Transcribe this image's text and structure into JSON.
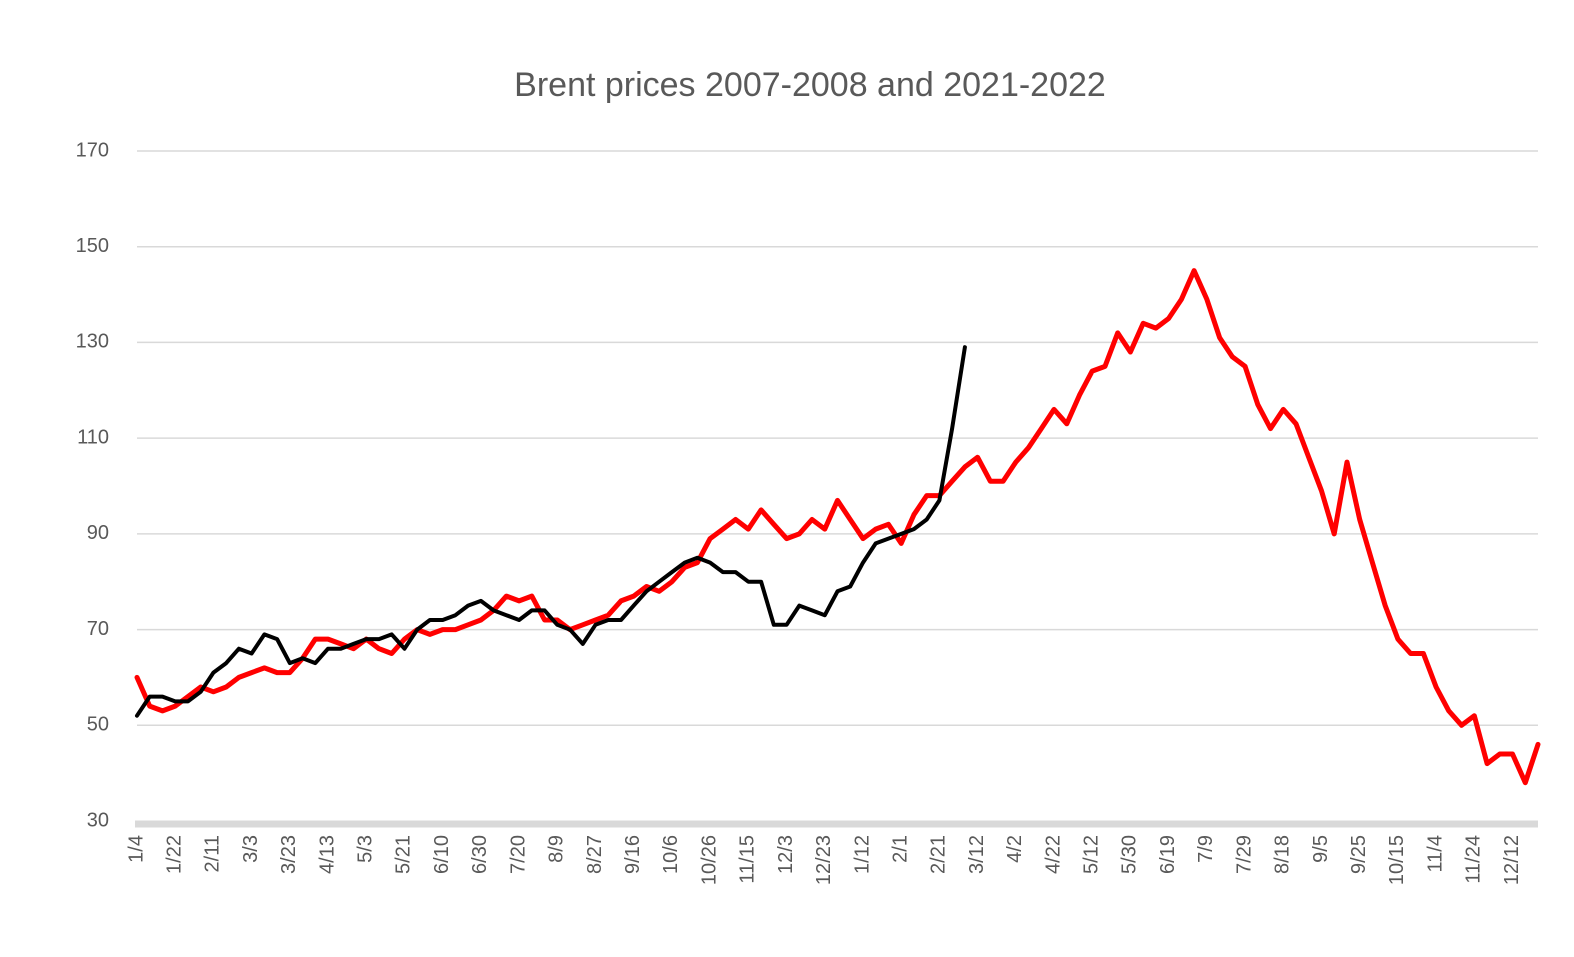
{
  "chart_data": {
    "type": "line",
    "title": "Brent prices 2007-2008 and 2021-2022",
    "categories": [
      "1/4",
      null,
      null,
      "1/22",
      null,
      null,
      "2/11",
      null,
      null,
      "3/3",
      null,
      null,
      "3/23",
      null,
      null,
      "4/13",
      null,
      null,
      "5/3",
      null,
      null,
      "5/21",
      null,
      null,
      "6/10",
      null,
      null,
      "6/30",
      null,
      null,
      "7/20",
      null,
      null,
      "8/9",
      null,
      null,
      "8/27",
      null,
      null,
      "9/16",
      null,
      null,
      "10/6",
      null,
      null,
      "10/26",
      null,
      null,
      "11/15",
      null,
      null,
      "12/3",
      null,
      null,
      "12/23",
      null,
      null,
      "1/12",
      null,
      null,
      "2/1",
      null,
      null,
      "2/21",
      null,
      null,
      "3/12",
      null,
      null,
      "4/2",
      null,
      null,
      "4/22",
      null,
      null,
      "5/12",
      null,
      null,
      "5/30",
      null,
      null,
      "6/19",
      null,
      null,
      "7/9",
      null,
      null,
      "7/29",
      null,
      null,
      "8/18",
      null,
      null,
      "9/5",
      null,
      null,
      "9/25",
      null,
      null,
      "10/15",
      null,
      null,
      "11/4",
      null,
      null,
      "11/24",
      null,
      null,
      "12/12",
      null,
      null
    ],
    "series": [
      {
        "color": "#ff0000",
        "values": [
          60,
          54,
          53,
          54,
          56,
          58,
          57,
          58,
          60,
          61,
          62,
          61,
          61,
          64,
          68,
          68,
          67,
          66,
          68,
          66,
          65,
          68,
          70,
          69,
          70,
          70,
          71,
          72,
          74,
          77,
          76,
          77,
          72,
          72,
          70,
          71,
          72,
          73,
          76,
          77,
          79,
          78,
          80,
          83,
          84,
          89,
          91,
          93,
          91,
          95,
          92,
          89,
          90,
          93,
          91,
          97,
          93,
          89,
          91,
          92,
          88,
          94,
          98,
          98,
          101,
          104,
          106,
          101,
          101,
          105,
          108,
          112,
          116,
          113,
          119,
          124,
          125,
          132,
          128,
          134,
          133,
          135,
          139,
          145,
          139,
          131,
          127,
          125,
          117,
          112,
          116,
          113,
          106,
          99,
          90,
          105,
          93,
          84,
          75,
          68,
          65,
          65,
          58,
          53,
          50,
          52,
          42,
          44,
          44,
          38,
          46
        ]
      },
      {
        "color": "#000000",
        "values": [
          52,
          56,
          56,
          55,
          55,
          57,
          61,
          63,
          66,
          65,
          69,
          68,
          63,
          64,
          63,
          66,
          66,
          67,
          68,
          68,
          69,
          66,
          70,
          72,
          72,
          73,
          75,
          76,
          74,
          73,
          72,
          74,
          74,
          71,
          70,
          67,
          71,
          72,
          72,
          75,
          78,
          80,
          82,
          84,
          85,
          84,
          82,
          82,
          80,
          80,
          71,
          71,
          75,
          74,
          73,
          78,
          79,
          84,
          88,
          89,
          90,
          91,
          93,
          97,
          112,
          129,
          null,
          null,
          null,
          null,
          null,
          null,
          null,
          null,
          null,
          null,
          null,
          null,
          null,
          null,
          null,
          null,
          null,
          null,
          null,
          null,
          null,
          null,
          null,
          null,
          null,
          null,
          null,
          null,
          null,
          null,
          null,
          null,
          null,
          null,
          null,
          null,
          null,
          null,
          null,
          null,
          null,
          null,
          null,
          null,
          null
        ]
      }
    ],
    "ylim": [
      30,
      170
    ],
    "yticks": [
      30,
      50,
      70,
      90,
      110,
      130,
      150,
      170
    ],
    "grid": true
  }
}
